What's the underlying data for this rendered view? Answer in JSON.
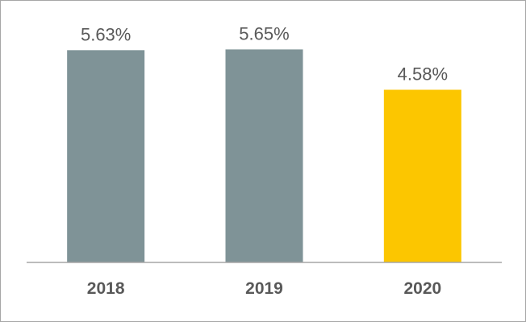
{
  "chart_data": {
    "type": "bar",
    "categories": [
      "2018",
      "2019",
      "2020"
    ],
    "values": [
      5.63,
      5.65,
      4.58
    ],
    "data_labels": [
      "5.63%",
      "5.65%",
      "4.58%"
    ],
    "unit": "%",
    "title": "",
    "xlabel": "",
    "ylabel": "",
    "ylim": [
      0,
      6
    ],
    "grid": false,
    "legend": "none",
    "colors": {
      "bars": [
        "#7f9397",
        "#7f9397",
        "#fcc600"
      ],
      "axis": "#a6a6a6",
      "labels": "#595959",
      "border": "#a6a6a6"
    }
  }
}
